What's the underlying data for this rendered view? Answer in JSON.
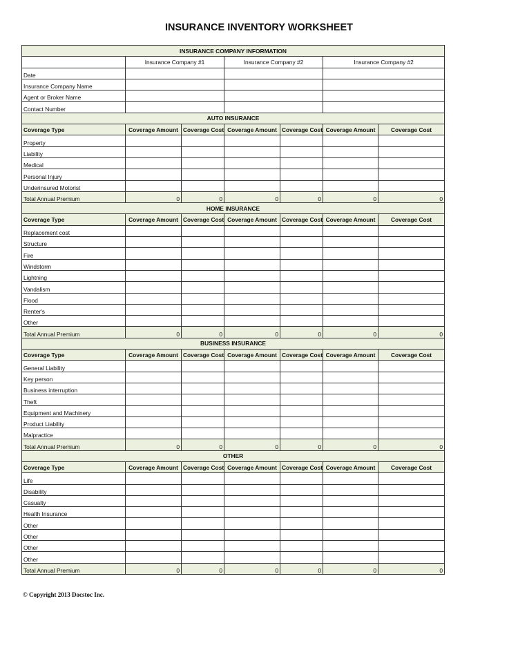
{
  "title": "INSURANCE INVENTORY WORKSHEET",
  "info": {
    "header": "INSURANCE COMPANY INFORMATION",
    "companies": [
      "Insurance Company #1",
      "Insurance Company #2",
      "Insurance Company #2"
    ],
    "rows": [
      "Date",
      "Insurance Company Name",
      "Agent or Broker Name",
      "Contact Number"
    ]
  },
  "column_headers": [
    "Coverage Type",
    "Coverage Amount",
    "Coverage Cost",
    "Coverage Amount",
    "Coverage Cost",
    "Coverage Amount",
    "Coverage Cost"
  ],
  "sections": [
    {
      "title": "AUTO INSURANCE",
      "rows": [
        "Property",
        "Liability",
        "Medical",
        "Personal Injury",
        "Underinsured Motorist"
      ],
      "total_label": "Total Annual Premium",
      "totals": [
        0,
        0,
        0,
        0,
        0,
        0
      ]
    },
    {
      "title": "HOME INSURANCE",
      "rows": [
        "Replacement cost",
        "Structure",
        "Fire",
        "Windstorm",
        "Lightning",
        "Vandalism",
        "Flood",
        "Renter's",
        "Other"
      ],
      "total_label": "Total Annual Premium",
      "totals": [
        0,
        0,
        0,
        0,
        0,
        0
      ]
    },
    {
      "title": "BUSINESS INSURANCE",
      "rows": [
        "General Liability",
        "Key person",
        "Business interruption",
        "Theft",
        "Equipment and Machinery",
        "Product Liability",
        "Malpractice"
      ],
      "total_label": "Total Annual Premium",
      "totals": [
        0,
        0,
        0,
        0,
        0,
        0
      ]
    },
    {
      "title": "OTHER",
      "rows": [
        "Life",
        "Disability",
        "Casualty",
        "Health Insurance",
        "Other",
        "Other",
        "Other",
        "Other"
      ],
      "total_label": "Total Annual Premium",
      "totals": [
        0,
        0,
        0,
        0,
        0,
        0
      ]
    }
  ],
  "copyright": "© Copyright 2013 Docstoc Inc.",
  "colors": {
    "header_bg": "#ebf1de",
    "border": "#333333"
  }
}
